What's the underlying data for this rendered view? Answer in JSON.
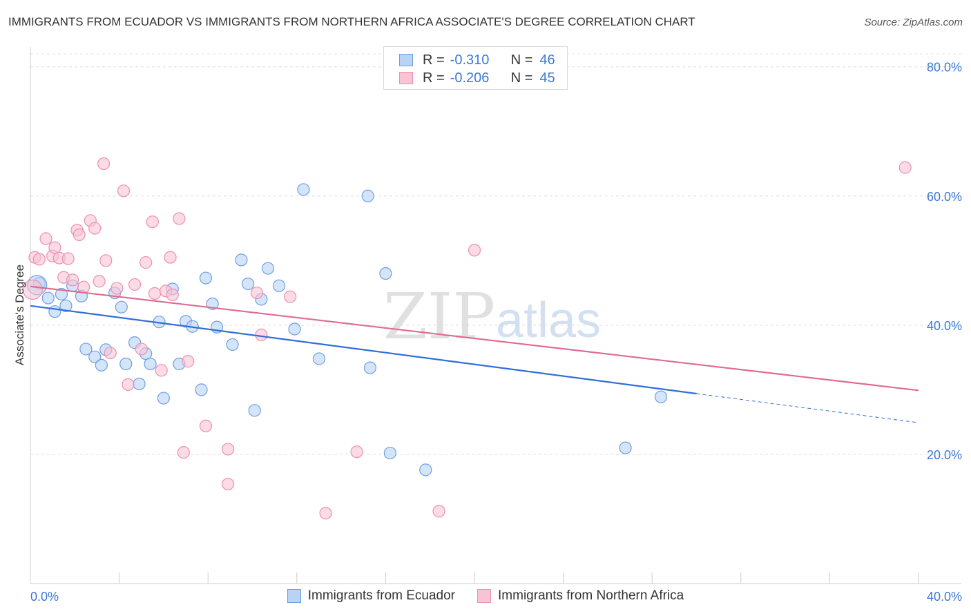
{
  "title": "IMMIGRANTS FROM ECUADOR VS IMMIGRANTS FROM NORTHERN AFRICA ASSOCIATE'S DEGREE CORRELATION CHART",
  "source": "Source: ZipAtlas.com",
  "watermark": {
    "zip": "ZIP",
    "atlas": "atlas"
  },
  "legend": {
    "rows": [
      {
        "r_label": "R =",
        "r_value": "-0.310",
        "n_label": "N =",
        "n_value": "46"
      },
      {
        "r_label": "R =",
        "r_value": "-0.206",
        "n_label": "N =",
        "n_value": "45"
      }
    ]
  },
  "colors": {
    "ecuador_fill": "#b9d3f5",
    "ecuador_stroke": "#6f9fe0",
    "ecuador_line": "#2f6fd6",
    "nafrica_fill": "#f8c3d3",
    "nafrica_stroke": "#ee8fae",
    "nafrica_line": "#e0698f",
    "axis_label": "#3b78d8"
  },
  "chart_data": {
    "type": "scatter",
    "title": "IMMIGRANTS FROM ECUADOR VS IMMIGRANTS FROM NORTHERN AFRICA ASSOCIATE'S DEGREE CORRELATION CHART",
    "xlabel": "",
    "ylabel": "Associate's Degree",
    "xlim": [
      0,
      40
    ],
    "ylim": [
      0,
      82
    ],
    "x_tick_labels": [
      "0.0%",
      "40.0%"
    ],
    "y_ticks": [
      20,
      40,
      60,
      80
    ],
    "y_tick_labels": [
      "20.0%",
      "40.0%",
      "60.0%",
      "80.0%"
    ],
    "grid": true,
    "legend_placement": "top-center",
    "series": [
      {
        "name": "Immigrants from Ecuador",
        "points": [
          [
            0.4,
            46.5
          ],
          [
            0.8,
            44.2
          ],
          [
            1.1,
            42.1
          ],
          [
            1.4,
            44.8
          ],
          [
            1.6,
            43.0
          ],
          [
            1.9,
            46.1
          ],
          [
            2.3,
            44.5
          ],
          [
            2.5,
            36.3
          ],
          [
            2.9,
            35.1
          ],
          [
            3.2,
            33.8
          ],
          [
            3.4,
            36.2
          ],
          [
            3.8,
            45.0
          ],
          [
            4.1,
            42.8
          ],
          [
            4.3,
            34.0
          ],
          [
            4.7,
            37.3
          ],
          [
            4.9,
            30.9
          ],
          [
            5.2,
            35.6
          ],
          [
            5.4,
            34.0
          ],
          [
            5.8,
            40.5
          ],
          [
            6.0,
            28.7
          ],
          [
            6.4,
            45.6
          ],
          [
            6.7,
            34.0
          ],
          [
            7.0,
            40.6
          ],
          [
            7.3,
            39.8
          ],
          [
            7.7,
            30.0
          ],
          [
            7.9,
            47.3
          ],
          [
            8.2,
            43.3
          ],
          [
            8.4,
            39.7
          ],
          [
            9.1,
            37.0
          ],
          [
            9.5,
            50.1
          ],
          [
            9.8,
            46.4
          ],
          [
            10.1,
            26.8
          ],
          [
            10.4,
            44.0
          ],
          [
            10.7,
            48.8
          ],
          [
            11.2,
            46.1
          ],
          [
            11.9,
            39.4
          ],
          [
            12.3,
            61.0
          ],
          [
            13.0,
            34.8
          ],
          [
            15.2,
            60.0
          ],
          [
            15.3,
            33.4
          ],
          [
            16.0,
            48.0
          ],
          [
            16.2,
            20.2
          ],
          [
            17.8,
            17.6
          ],
          [
            26.8,
            21.0
          ],
          [
            28.4,
            28.9
          ],
          [
            0.3,
            46.2
          ]
        ]
      },
      {
        "name": "Immigrants from Northern Africa",
        "points": [
          [
            0.2,
            50.5
          ],
          [
            0.4,
            50.2
          ],
          [
            0.7,
            53.4
          ],
          [
            1.0,
            50.7
          ],
          [
            1.1,
            52.0
          ],
          [
            1.3,
            50.4
          ],
          [
            1.5,
            47.4
          ],
          [
            1.7,
            50.3
          ],
          [
            1.9,
            47.0
          ],
          [
            2.1,
            54.7
          ],
          [
            2.2,
            54.0
          ],
          [
            2.4,
            45.9
          ],
          [
            2.7,
            56.2
          ],
          [
            2.9,
            55.0
          ],
          [
            3.1,
            46.8
          ],
          [
            3.3,
            65.0
          ],
          [
            3.4,
            50.0
          ],
          [
            3.6,
            35.7
          ],
          [
            3.9,
            45.7
          ],
          [
            4.2,
            60.8
          ],
          [
            4.4,
            30.8
          ],
          [
            4.7,
            46.3
          ],
          [
            5.0,
            36.3
          ],
          [
            5.2,
            49.7
          ],
          [
            5.5,
            56.0
          ],
          [
            5.6,
            44.9
          ],
          [
            5.9,
            33.0
          ],
          [
            6.1,
            45.3
          ],
          [
            6.3,
            50.5
          ],
          [
            6.4,
            44.7
          ],
          [
            6.7,
            56.5
          ],
          [
            6.9,
            20.3
          ],
          [
            7.1,
            34.4
          ],
          [
            7.9,
            24.4
          ],
          [
            8.9,
            15.4
          ],
          [
            8.9,
            20.8
          ],
          [
            10.2,
            45.0
          ],
          [
            10.4,
            38.5
          ],
          [
            11.7,
            44.4
          ],
          [
            13.3,
            10.9
          ],
          [
            14.7,
            20.4
          ],
          [
            18.4,
            11.2
          ],
          [
            20.0,
            51.6
          ],
          [
            39.4,
            64.4
          ],
          [
            0.1,
            45.5
          ]
        ]
      }
    ],
    "trendlines": [
      {
        "series": "Immigrants from Ecuador",
        "x0": 0,
        "y0": 43.0,
        "x1": 30.0,
        "y1": 29.4,
        "dash_from": 30.0,
        "dash_to": 40.0,
        "dash_y_end": 24.9
      },
      {
        "series": "Immigrants from Northern Africa",
        "x0": 0,
        "y0": 46.0,
        "x1": 40.0,
        "y1": 29.9
      }
    ]
  }
}
